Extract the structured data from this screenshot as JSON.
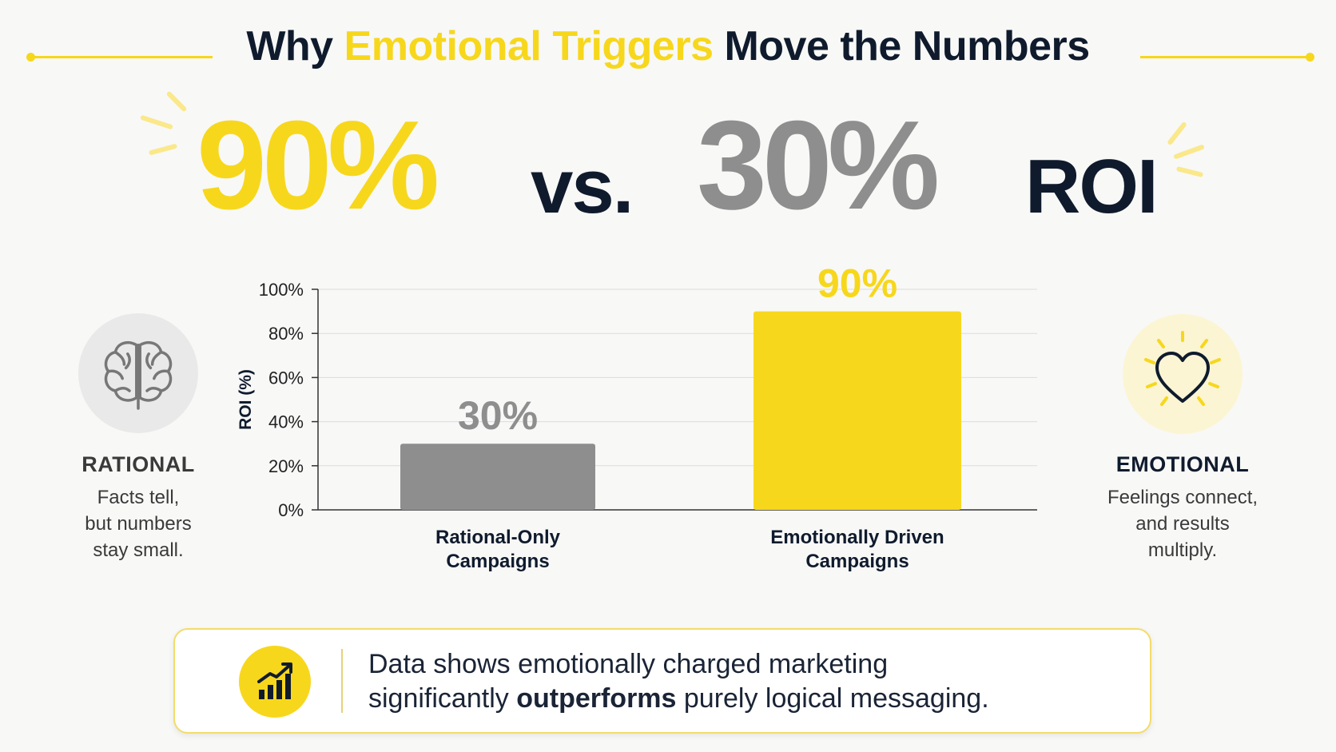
{
  "title": {
    "before": "Why ",
    "highlight": "Emotional Triggers",
    "after": " Move the Numbers"
  },
  "headline": {
    "value_a": "90%",
    "vs": "vs.",
    "value_b": "30%",
    "suffix": "ROI"
  },
  "left_panel": {
    "icon": "brain-icon",
    "label": "RATIONAL",
    "lines": [
      "Facts tell,",
      "but numbers",
      "stay small."
    ]
  },
  "right_panel": {
    "icon": "heart-icon",
    "label": "EMOTIONAL",
    "lines": [
      "Feelings connect,",
      "and results",
      "multiply."
    ]
  },
  "chart_data": {
    "type": "bar",
    "categories": [
      [
        "Rational-Only",
        "Campaigns"
      ],
      [
        "Emotionally Driven",
        "Campaigns"
      ]
    ],
    "values": [
      30,
      90
    ],
    "value_labels": [
      "30%",
      "90%"
    ],
    "colors": [
      "#8e8e8e",
      "#f7d71c"
    ],
    "value_label_colors": [
      "#8e8e8e",
      "#f7d71c"
    ],
    "ylabel": "ROI (%)",
    "ylim": [
      0,
      100
    ],
    "yticks": [
      0,
      20,
      40,
      60,
      80,
      100
    ],
    "ytick_labels": [
      "0%",
      "20%",
      "40%",
      "60%",
      "80%",
      "100%"
    ],
    "grid": true
  },
  "callout": {
    "icon": "trending-chart-icon",
    "line1": "Data shows emotionally charged marketing",
    "line2_before": "significantly ",
    "line2_bold": "outperforms",
    "line2_after": " purely logical messaging."
  },
  "colors": {
    "accent": "#f7d71c",
    "rational": "#8e8e8e",
    "text": "#0f1b2d"
  }
}
